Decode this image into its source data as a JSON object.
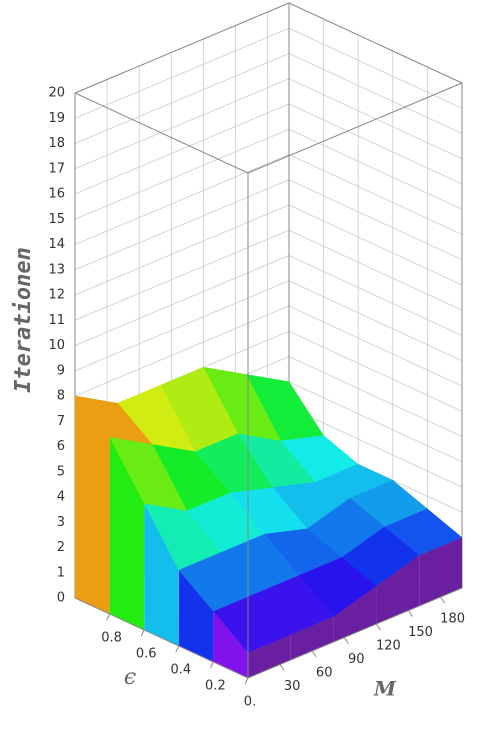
{
  "chart_data": {
    "type": "surface3d",
    "xlabel": "ϵ",
    "ylabel": "M",
    "zlabel": "Iterationen",
    "x": [
      0,
      0.2,
      0.4,
      0.6,
      0.8,
      1
    ],
    "y": [
      0,
      40,
      80,
      120,
      160,
      200
    ],
    "z": [
      [
        1,
        1,
        1,
        1.5,
        2,
        2
      ],
      [
        2,
        2,
        2,
        2,
        2.5,
        2.5
      ],
      [
        3,
        3,
        3,
        2.5,
        3,
        3
      ],
      [
        5,
        4,
        4,
        3.5,
        3,
        3
      ],
      [
        7,
        6,
        5,
        5,
        4,
        3.5
      ],
      [
        8,
        7,
        7,
        7,
        6,
        5
      ]
    ],
    "xlim": [
      0,
      1
    ],
    "ylim": [
      0,
      200
    ],
    "zlim": [
      0,
      20
    ],
    "xticks": [
      {
        "value": 0,
        "label": "0."
      },
      0.2,
      0.4,
      0.6,
      0.8
    ],
    "yticks": [
      30,
      60,
      90,
      120,
      150,
      180
    ],
    "zticks": [
      0,
      1,
      2,
      3,
      4,
      5,
      6,
      7,
      8,
      9,
      10,
      11,
      12,
      13,
      14,
      15,
      16,
      17,
      18,
      19,
      20
    ],
    "colormap": "rainbow",
    "grid": true
  }
}
